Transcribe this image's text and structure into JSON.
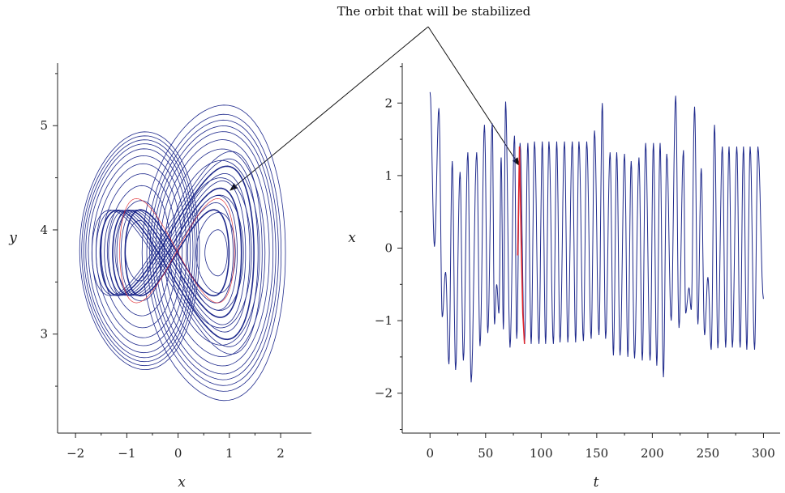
{
  "annotation": "The orbit that will be stabilized",
  "colors": {
    "trajectory": "#1f2a8c",
    "orbit": "#e0232a",
    "axes": "#222222",
    "annotation_arrow": "#111111"
  },
  "chart_data": [
    {
      "type": "line",
      "subtype": "phase-portrait",
      "title": "",
      "xlabel": "x",
      "ylabel": "y",
      "xlim": [
        -2.35,
        2.6
      ],
      "ylim": [
        2.05,
        5.6
      ],
      "xticks": [
        -2,
        -1,
        0,
        1,
        2
      ],
      "yticks": [
        3,
        4,
        5
      ],
      "xtick_labels": [
        "−2",
        "−1",
        "0",
        "1",
        "2"
      ],
      "ytick_labels": [
        "3",
        "4",
        "5"
      ],
      "grid": false,
      "series": [
        {
          "color": "#1f2a8c",
          "description_values": {
            "left_lobe_center": [
              -0.78,
              3.8
            ],
            "right_lobe_center": [
              0.75,
              3.75
            ],
            "x_extent": [
              -1.9,
              2.05
            ],
            "y_extent": [
              2.42,
              5.27
            ]
          }
        },
        {
          "color": "#e0232a",
          "highlight": "stabilized orbit (thin red segment)"
        }
      ]
    },
    {
      "type": "line",
      "subtype": "time-series",
      "title": "",
      "xlabel": "t",
      "ylabel": "x",
      "xlim": [
        -25,
        315
      ],
      "ylim": [
        -2.55,
        2.55
      ],
      "xticks": [
        0,
        50,
        100,
        150,
        200,
        250,
        300
      ],
      "yticks": [
        -2,
        -1,
        0,
        1,
        2
      ],
      "xtick_labels": [
        "0",
        "50",
        "100",
        "150",
        "200",
        "250",
        "300"
      ],
      "ytick_labels": [
        "−2",
        "−1",
        "0",
        "1",
        "2"
      ],
      "grid": false,
      "series": [
        {
          "color": "#1f2a8c",
          "peaks": [
            [
              0,
              2.15
            ],
            [
              8,
              1.93
            ],
            [
              14,
              -0.33
            ],
            [
              20,
              1.2
            ],
            [
              27,
              1.05
            ],
            [
              34,
              1.32
            ],
            [
              42,
              1.32
            ],
            [
              49,
              1.7
            ],
            [
              56,
              1.72
            ],
            [
              60,
              -0.5
            ],
            [
              64,
              1.25
            ],
            [
              68,
              2.02
            ],
            [
              76,
              1.55
            ],
            [
              81,
              1.45
            ],
            [
              88,
              1.45
            ],
            [
              94,
              1.47
            ],
            [
              101,
              1.47
            ],
            [
              107,
              1.47
            ],
            [
              114,
              1.47
            ],
            [
              121,
              1.47
            ],
            [
              128,
              1.47
            ],
            [
              134,
              1.47
            ],
            [
              141,
              1.47
            ],
            [
              148,
              1.62
            ],
            [
              155,
              2.0
            ],
            [
              162,
              1.32
            ],
            [
              168,
              1.32
            ],
            [
              175,
              1.3
            ],
            [
              181,
              1.2
            ],
            [
              188,
              1.25
            ],
            [
              194,
              1.45
            ],
            [
              201,
              1.45
            ],
            [
              207,
              1.45
            ],
            [
              213,
              1.3
            ],
            [
              221,
              2.1
            ],
            [
              228,
              1.35
            ],
            [
              233,
              -0.55
            ],
            [
              238,
              1.95
            ],
            [
              244,
              1.1
            ],
            [
              250,
              -0.4
            ],
            [
              256,
              1.7
            ],
            [
              263,
              1.4
            ],
            [
              269,
              1.4
            ],
            [
              276,
              1.4
            ],
            [
              282,
              1.4
            ],
            [
              288,
              1.4
            ],
            [
              295,
              1.4
            ]
          ],
          "troughs": [
            [
              4,
              0.02
            ],
            [
              11,
              -0.95
            ],
            [
              17,
              -1.6
            ],
            [
              23,
              -1.68
            ],
            [
              30,
              -1.55
            ],
            [
              37,
              -1.85
            ],
            [
              45,
              -1.35
            ],
            [
              52,
              -1.17
            ],
            [
              58,
              -1.05
            ],
            [
              62,
              -0.9
            ],
            [
              66,
              -1.12
            ],
            [
              72,
              -1.37
            ],
            [
              78,
              -1.25
            ],
            [
              85,
              -1.32
            ],
            [
              91,
              -1.32
            ],
            [
              98,
              -1.32
            ],
            [
              104,
              -1.32
            ],
            [
              111,
              -1.32
            ],
            [
              117,
              -1.3
            ],
            [
              124,
              -1.3
            ],
            [
              131,
              -1.3
            ],
            [
              138,
              -1.28
            ],
            [
              145,
              -1.25
            ],
            [
              152,
              -1.2
            ],
            [
              158,
              -1.25
            ],
            [
              165,
              -1.48
            ],
            [
              171,
              -1.48
            ],
            [
              178,
              -1.5
            ],
            [
              184,
              -1.52
            ],
            [
              191,
              -1.55
            ],
            [
              198,
              -1.55
            ],
            [
              204,
              -1.62
            ],
            [
              210,
              -1.78
            ],
            [
              217,
              -1.0
            ],
            [
              224,
              -1.1
            ],
            [
              230,
              -0.9
            ],
            [
              235,
              -0.85
            ],
            [
              241,
              -1.05
            ],
            [
              247,
              -1.2
            ],
            [
              253,
              -1.4
            ],
            [
              259,
              -1.38
            ],
            [
              266,
              -1.37
            ],
            [
              272,
              -1.37
            ],
            [
              279,
              -1.37
            ],
            [
              285,
              -1.4
            ],
            [
              292,
              -1.4
            ]
          ],
          "end": [
            300,
            -0.7
          ]
        },
        {
          "color": "#e0232a",
          "highlight": "stabilized orbit",
          "points": [
            [
              79,
              -0.1
            ],
            [
              80.5,
              1.4
            ],
            [
              82,
              0.1
            ],
            [
              83.5,
              -0.9
            ],
            [
              85,
              -1.32
            ]
          ]
        }
      ]
    }
  ]
}
